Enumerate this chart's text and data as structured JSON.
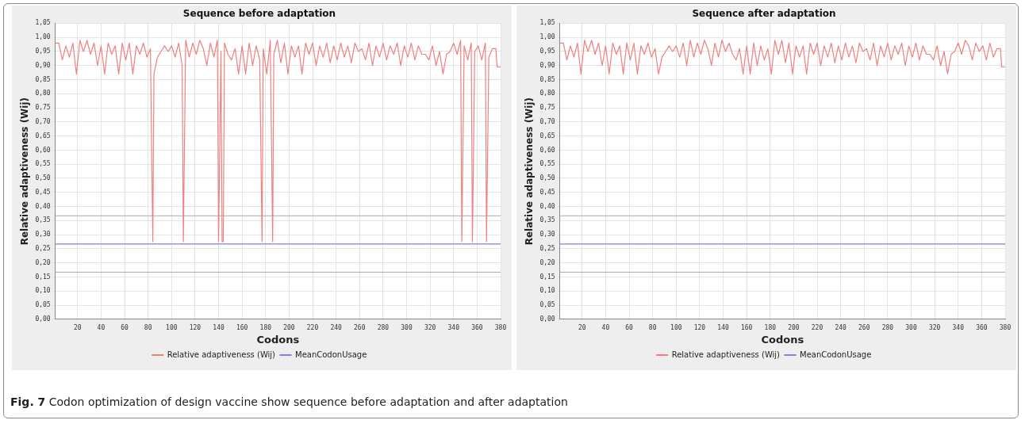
{
  "chart_data": [
    {
      "type": "line",
      "title": "Sequence before adaptation",
      "xlabel": "Codons",
      "ylabel": "Relative adaptiveness (Wij)",
      "xlim": [
        1,
        380
      ],
      "xticks": [
        20,
        40,
        60,
        80,
        100,
        120,
        140,
        160,
        180,
        200,
        220,
        240,
        260,
        280,
        300,
        320,
        340,
        360,
        380
      ],
      "ylim": [
        0,
        1.05
      ],
      "yticks": [
        {
          "value": 0,
          "label": "0,00"
        },
        {
          "value": 0.05,
          "label": "0,05"
        },
        {
          "value": 0.1,
          "label": "0,10"
        },
        {
          "value": 0.15,
          "label": "0,15"
        },
        {
          "value": 0.2,
          "label": "0,20"
        },
        {
          "value": 0.25,
          "label": "0,25"
        },
        {
          "value": 0.3,
          "label": "0,30"
        },
        {
          "value": 0.35,
          "label": "0,35"
        },
        {
          "value": 0.4,
          "label": "0,40"
        },
        {
          "value": 0.45,
          "label": "0,45"
        },
        {
          "value": 0.5,
          "label": "0,50"
        },
        {
          "value": 0.55,
          "label": "0,55"
        },
        {
          "value": 0.6,
          "label": "0,60"
        },
        {
          "value": 0.65,
          "label": "0,65"
        },
        {
          "value": 0.7,
          "label": "0,70"
        },
        {
          "value": 0.75,
          "label": "0,75"
        },
        {
          "value": 0.8,
          "label": "0,80"
        },
        {
          "value": 0.85,
          "label": "0,85"
        },
        {
          "value": 0.9,
          "label": "0,90"
        },
        {
          "value": 0.95,
          "label": "0,95"
        },
        {
          "value": 1,
          "label": "1,00"
        },
        {
          "value": 1.05,
          "label": "1,05"
        }
      ],
      "grid": true,
      "legend": "bottom",
      "marker": "none",
      "ref_lines": [
        {
          "axis": "y",
          "value": 0.367,
          "color": "#aaaaaa"
        },
        {
          "axis": "y",
          "value": 0.167,
          "color": "#aaaaaa"
        }
      ],
      "annotations": [
        "Fig. 7 Codon optimization of design vaccine show sequence before adaptation and after adaptation"
      ],
      "series": [
        {
          "name": "Relative adaptiveness (Wij)",
          "color": "#f08080",
          "x": [
            1,
            4,
            7,
            10,
            13,
            16,
            19,
            22,
            25,
            28,
            31,
            34,
            37,
            40,
            43,
            46,
            49,
            52,
            55,
            58,
            61,
            64,
            67,
            70,
            73,
            76,
            79,
            82,
            84,
            85,
            88,
            91,
            94,
            97,
            100,
            103,
            106,
            109,
            110,
            112,
            115,
            118,
            121,
            124,
            127,
            130,
            133,
            136,
            139,
            140,
            142,
            143,
            144,
            145,
            148,
            151,
            154,
            157,
            160,
            163,
            166,
            169,
            172,
            175,
            177,
            178,
            181,
            184,
            186,
            187,
            190,
            193,
            196,
            199,
            202,
            205,
            208,
            211,
            214,
            217,
            220,
            223,
            226,
            229,
            232,
            235,
            238,
            241,
            244,
            247,
            250,
            253,
            256,
            259,
            262,
            265,
            268,
            271,
            274,
            277,
            280,
            283,
            286,
            289,
            292,
            295,
            298,
            301,
            304,
            307,
            310,
            313,
            316,
            319,
            322,
            325,
            328,
            331,
            334,
            337,
            340,
            343,
            346,
            347,
            349,
            352,
            355,
            356,
            358,
            361,
            364,
            367,
            368,
            370,
            373,
            376,
            377,
            380
          ],
          "values": [
            0.98,
            0.98,
            0.92,
            0.97,
            0.93,
            0.98,
            0.87,
            0.99,
            0.95,
            0.99,
            0.94,
            0.98,
            0.9,
            0.97,
            0.87,
            0.98,
            0.94,
            0.97,
            0.87,
            0.98,
            0.92,
            0.98,
            0.87,
            0.97,
            0.94,
            0.98,
            0.93,
            0.96,
            0.275,
            0.87,
            0.93,
            0.95,
            0.97,
            0.95,
            0.97,
            0.93,
            0.98,
            0.9,
            0.275,
            0.99,
            0.93,
            0.98,
            0.94,
            0.99,
            0.96,
            0.9,
            0.98,
            0.93,
            0.99,
            0.275,
            0.95,
            0.275,
            0.275,
            0.98,
            0.94,
            0.92,
            0.96,
            0.87,
            0.97,
            0.87,
            0.98,
            0.9,
            0.97,
            0.92,
            0.275,
            0.96,
            0.87,
            0.99,
            0.275,
            0.94,
            0.99,
            0.91,
            0.98,
            0.87,
            0.97,
            0.93,
            0.97,
            0.87,
            0.98,
            0.94,
            0.98,
            0.9,
            0.97,
            0.93,
            0.98,
            0.91,
            0.97,
            0.92,
            0.98,
            0.93,
            0.97,
            0.91,
            0.98,
            0.95,
            0.96,
            0.92,
            0.98,
            0.9,
            0.97,
            0.93,
            0.98,
            0.92,
            0.97,
            0.94,
            0.98,
            0.9,
            0.97,
            0.93,
            0.98,
            0.92,
            0.97,
            0.94,
            0.94,
            0.92,
            0.97,
            0.9,
            0.95,
            0.87,
            0.94,
            0.95,
            0.98,
            0.94,
            0.99,
            0.275,
            0.97,
            0.92,
            0.98,
            0.275,
            0.95,
            0.97,
            0.92,
            0.98,
            0.275,
            0.93,
            0.96,
            0.96,
            0.895,
            0.895
          ]
        },
        {
          "name": "MeanCodonUsage",
          "color": "#8080e0",
          "x": [
            1,
            380
          ],
          "values": [
            0.267,
            0.267
          ]
        }
      ]
    },
    {
      "type": "line",
      "title": "Sequence after adaptation",
      "xlabel": "Codons",
      "ylabel": "Relative adaptiveness (Wij)",
      "xlim": [
        1,
        380
      ],
      "xticks": [
        20,
        40,
        60,
        80,
        100,
        120,
        140,
        160,
        180,
        200,
        220,
        240,
        260,
        280,
        300,
        320,
        340,
        360,
        380
      ],
      "ylim": [
        0,
        1.05
      ],
      "yticks": [
        {
          "value": 0,
          "label": "0,00"
        },
        {
          "value": 0.05,
          "label": "0,05"
        },
        {
          "value": 0.1,
          "label": "0,10"
        },
        {
          "value": 0.15,
          "label": "0,15"
        },
        {
          "value": 0.2,
          "label": "0,20"
        },
        {
          "value": 0.25,
          "label": "0,25"
        },
        {
          "value": 0.3,
          "label": "0,30"
        },
        {
          "value": 0.35,
          "label": "0,35"
        },
        {
          "value": 0.4,
          "label": "0,40"
        },
        {
          "value": 0.45,
          "label": "0,45"
        },
        {
          "value": 0.5,
          "label": "0,50"
        },
        {
          "value": 0.55,
          "label": "0,55"
        },
        {
          "value": 0.6,
          "label": "0,60"
        },
        {
          "value": 0.65,
          "label": "0,65"
        },
        {
          "value": 0.7,
          "label": "0,70"
        },
        {
          "value": 0.75,
          "label": "0,75"
        },
        {
          "value": 0.8,
          "label": "0,80"
        },
        {
          "value": 0.85,
          "label": "0,85"
        },
        {
          "value": 0.9,
          "label": "0,90"
        },
        {
          "value": 0.95,
          "label": "0,95"
        },
        {
          "value": 1,
          "label": "1,00"
        },
        {
          "value": 1.05,
          "label": "1,05"
        }
      ],
      "grid": true,
      "legend": "bottom",
      "marker": "none",
      "ref_lines": [
        {
          "axis": "y",
          "value": 0.367,
          "color": "#aaaaaa"
        },
        {
          "axis": "y",
          "value": 0.167,
          "color": "#aaaaaa"
        }
      ],
      "series": [
        {
          "name": "Relative adaptiveness (Wij)",
          "color": "#f08080",
          "x": [
            1,
            4,
            7,
            10,
            13,
            16,
            19,
            22,
            25,
            28,
            31,
            34,
            37,
            40,
            43,
            46,
            49,
            52,
            55,
            58,
            61,
            64,
            67,
            70,
            73,
            76,
            79,
            82,
            85,
            88,
            91,
            94,
            97,
            100,
            103,
            106,
            109,
            112,
            115,
            118,
            121,
            124,
            127,
            130,
            133,
            136,
            139,
            142,
            145,
            148,
            151,
            154,
            157,
            160,
            163,
            166,
            169,
            172,
            175,
            178,
            181,
            184,
            187,
            190,
            193,
            196,
            199,
            202,
            205,
            208,
            211,
            214,
            217,
            220,
            223,
            226,
            229,
            232,
            235,
            238,
            241,
            244,
            247,
            250,
            253,
            256,
            259,
            262,
            265,
            268,
            271,
            274,
            277,
            280,
            283,
            286,
            289,
            292,
            295,
            298,
            301,
            304,
            307,
            310,
            313,
            316,
            319,
            322,
            325,
            328,
            331,
            334,
            337,
            340,
            343,
            346,
            349,
            352,
            355,
            358,
            361,
            364,
            367,
            370,
            373,
            376,
            377,
            380
          ],
          "values": [
            0.98,
            0.98,
            0.92,
            0.97,
            0.93,
            0.98,
            0.87,
            0.99,
            0.95,
            0.99,
            0.94,
            0.98,
            0.9,
            0.97,
            0.87,
            0.98,
            0.94,
            0.97,
            0.87,
            0.98,
            0.92,
            0.98,
            0.87,
            0.97,
            0.94,
            0.98,
            0.93,
            0.96,
            0.87,
            0.93,
            0.95,
            0.97,
            0.95,
            0.97,
            0.93,
            0.98,
            0.9,
            0.99,
            0.93,
            0.98,
            0.94,
            0.99,
            0.96,
            0.9,
            0.98,
            0.93,
            0.99,
            0.95,
            0.98,
            0.94,
            0.92,
            0.96,
            0.87,
            0.97,
            0.87,
            0.98,
            0.9,
            0.97,
            0.92,
            0.96,
            0.87,
            0.99,
            0.94,
            0.99,
            0.91,
            0.98,
            0.87,
            0.97,
            0.93,
            0.97,
            0.87,
            0.98,
            0.94,
            0.98,
            0.9,
            0.97,
            0.93,
            0.98,
            0.91,
            0.97,
            0.92,
            0.98,
            0.93,
            0.97,
            0.91,
            0.98,
            0.95,
            0.96,
            0.92,
            0.98,
            0.9,
            0.97,
            0.93,
            0.98,
            0.92,
            0.97,
            0.94,
            0.98,
            0.9,
            0.97,
            0.93,
            0.98,
            0.92,
            0.97,
            0.94,
            0.94,
            0.92,
            0.97,
            0.9,
            0.95,
            0.87,
            0.94,
            0.95,
            0.98,
            0.94,
            0.99,
            0.97,
            0.92,
            0.98,
            0.95,
            0.97,
            0.92,
            0.98,
            0.93,
            0.96,
            0.96,
            0.895,
            0.895
          ]
        },
        {
          "name": "MeanCodonUsage",
          "color": "#8080e0",
          "x": [
            1,
            380
          ],
          "values": [
            0.267,
            0.267
          ]
        }
      ]
    }
  ]
}
